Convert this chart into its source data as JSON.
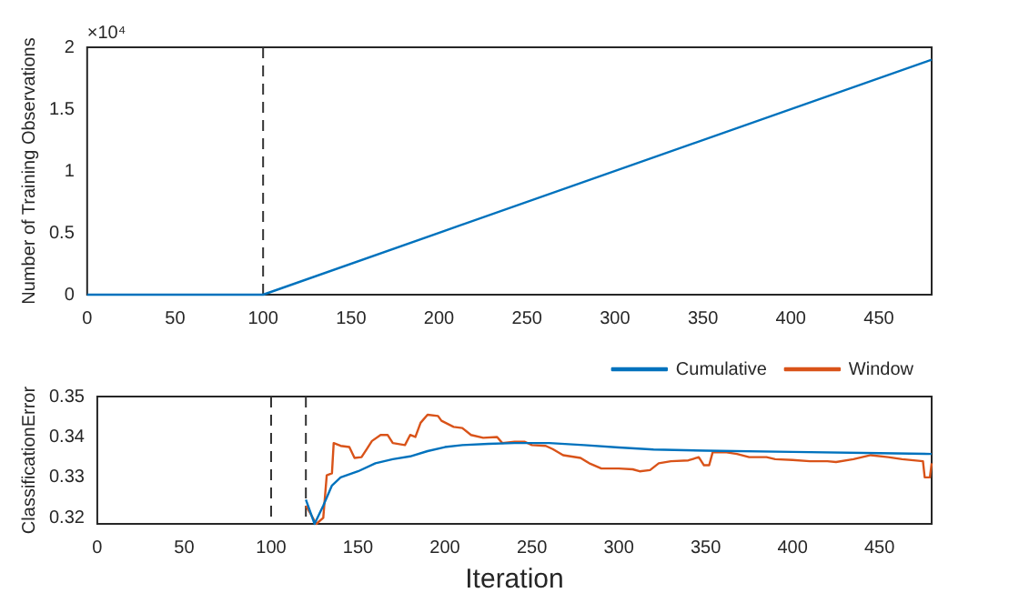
{
  "chart_data": [
    {
      "type": "line",
      "ylabel": "Number of Training Observations",
      "annotations": [
        "×10⁴"
      ],
      "xlim": [
        0,
        480
      ],
      "xticks": [
        0,
        50,
        100,
        150,
        200,
        250,
        300,
        350,
        400,
        450
      ],
      "ylim": [
        0,
        2
      ],
      "yticks": [
        0,
        0.5,
        1,
        1.5,
        2
      ],
      "grid": false,
      "series": [
        {
          "color": "#0072bd",
          "x": [
            0,
            100,
            480
          ],
          "values": [
            0,
            0,
            1.9
          ]
        }
      ],
      "ref_lines": [
        {
          "axis": "x",
          "value": 100,
          "line_style": "dashed",
          "color": "#333333"
        }
      ]
    },
    {
      "type": "line",
      "xlabel": "Iteration",
      "ylabel": "ClassificationError",
      "xlim": [
        0,
        480
      ],
      "xticks": [
        0,
        50,
        100,
        150,
        200,
        250,
        300,
        350,
        400,
        450
      ],
      "ylim": [
        0.3185,
        0.35
      ],
      "yticks": [
        0.32,
        0.33,
        0.34,
        0.35
      ],
      "grid": false,
      "legend": "top right",
      "series": [
        {
          "name": "Cumulative",
          "color": "#0072bd",
          "x": [
            120,
            125,
            130,
            135,
            140,
            150,
            160,
            170,
            180,
            190,
            200,
            210,
            225,
            240,
            260,
            280,
            300,
            320,
            350,
            400,
            450,
            480
          ],
          "values": [
            0.3245,
            0.3185,
            0.323,
            0.328,
            0.33,
            0.3315,
            0.3335,
            0.3345,
            0.3352,
            0.3365,
            0.3375,
            0.338,
            0.3383,
            0.3385,
            0.3385,
            0.338,
            0.3374,
            0.3369,
            0.3366,
            0.3363,
            0.336,
            0.3358
          ]
        },
        {
          "name": "Window",
          "color": "#d95319",
          "x": [
            120,
            126,
            130,
            132,
            135,
            136,
            140,
            145,
            148,
            152,
            155,
            158,
            163,
            167,
            170,
            177,
            180,
            183,
            186,
            190,
            196,
            198,
            205,
            210,
            215,
            222,
            230,
            233,
            240,
            246,
            250,
            258,
            262,
            268,
            278,
            283,
            290,
            300,
            308,
            312,
            318,
            323,
            330,
            340,
            346,
            349,
            352,
            354,
            362,
            368,
            375,
            385,
            390,
            400,
            410,
            420,
            425,
            435,
            445,
            455,
            463,
            475,
            476,
            479,
            480
          ],
          "values": [
            0.323,
            0.3185,
            0.32,
            0.3305,
            0.331,
            0.3385,
            0.3378,
            0.3375,
            0.3348,
            0.335,
            0.337,
            0.339,
            0.3405,
            0.3405,
            0.3385,
            0.338,
            0.3405,
            0.34,
            0.3435,
            0.3455,
            0.3452,
            0.344,
            0.3425,
            0.3422,
            0.3405,
            0.3398,
            0.34,
            0.3385,
            0.3388,
            0.3388,
            0.338,
            0.3378,
            0.337,
            0.3355,
            0.3348,
            0.3335,
            0.3322,
            0.3322,
            0.332,
            0.3315,
            0.3318,
            0.3335,
            0.334,
            0.3342,
            0.335,
            0.333,
            0.333,
            0.3362,
            0.3362,
            0.3358,
            0.335,
            0.335,
            0.3345,
            0.3343,
            0.334,
            0.334,
            0.3338,
            0.3345,
            0.3355,
            0.335,
            0.3345,
            0.334,
            0.33,
            0.33,
            0.3335
          ]
        }
      ],
      "ref_lines": [
        {
          "axis": "x",
          "value": 100,
          "line_style": "dashed",
          "color": "#333333"
        },
        {
          "axis": "x",
          "value": 120,
          "line_style": "dashed",
          "color": "#333333"
        }
      ]
    }
  ]
}
